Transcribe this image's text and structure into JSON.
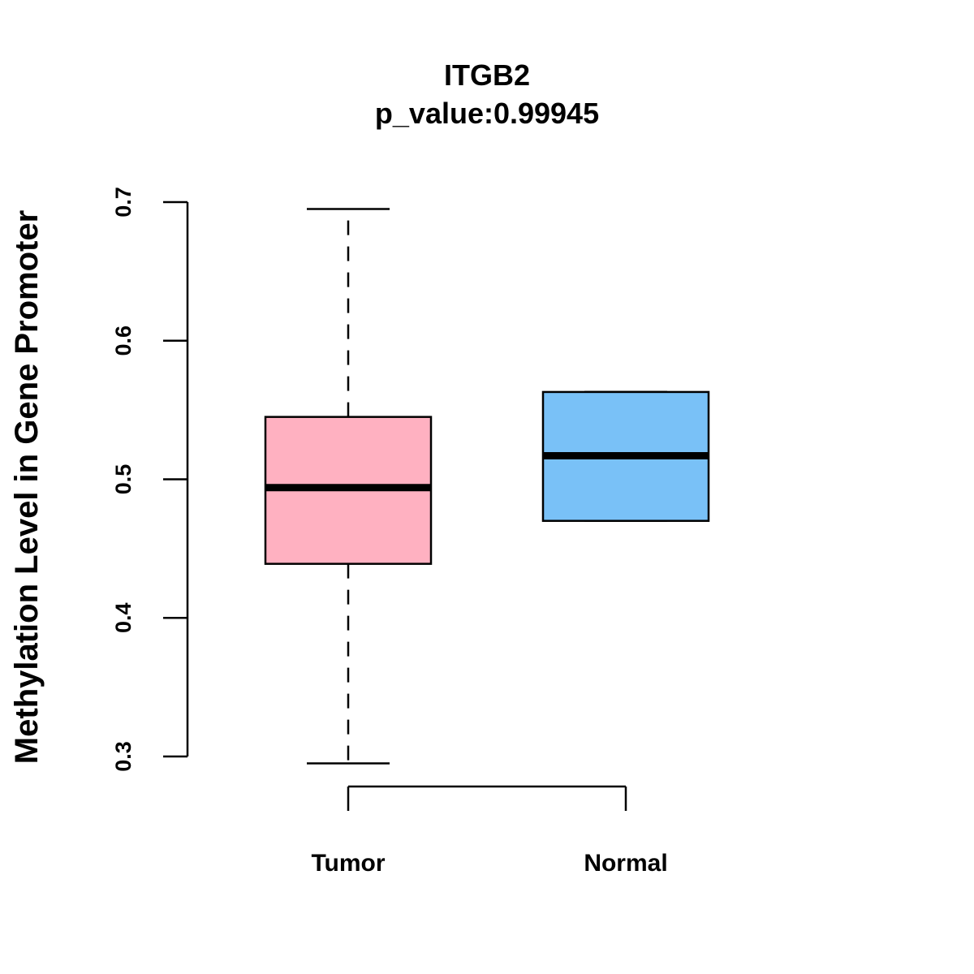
{
  "chart_data": {
    "type": "box",
    "title": "ITGB2",
    "subtitle": "p_value:0.99945",
    "xlabel": "",
    "ylabel": "Methylation Level in Gene Promoter",
    "ylim": [
      0.3,
      0.7
    ],
    "yticks": [
      0.3,
      0.4,
      0.5,
      0.6,
      0.7
    ],
    "ytick_labels": [
      "0.3",
      "0.4",
      "0.5",
      "0.6",
      "0.7"
    ],
    "grid": false,
    "categories": [
      "Tumor",
      "Normal"
    ],
    "series": [
      {
        "name": "Tumor",
        "min": 0.295,
        "q1": 0.439,
        "median": 0.494,
        "q3": 0.545,
        "max": 0.695,
        "color": "#FFB1C1"
      },
      {
        "name": "Normal",
        "min": 0.47,
        "q1": 0.47,
        "median": 0.517,
        "q3": 0.563,
        "max": 0.563,
        "color": "#79C1F7"
      }
    ]
  }
}
